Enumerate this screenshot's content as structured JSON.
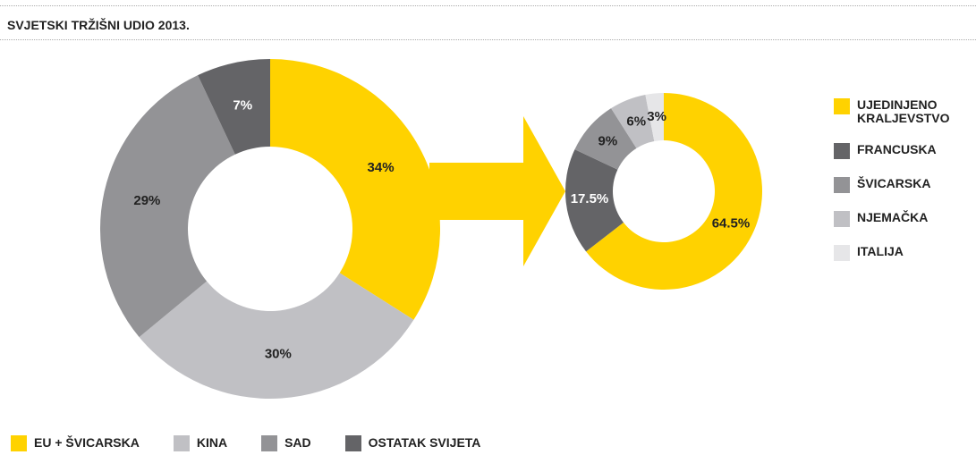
{
  "chart_data": [
    {
      "type": "pie",
      "donut": true,
      "title": "SVJETSKI TRŽIŠNI UDIO 2013.",
      "categories": [
        "EU + ŠVICARSKA",
        "KINA",
        "SAD",
        "OSTATAK SVIJETA"
      ],
      "values": [
        34,
        30,
        29,
        7
      ],
      "value_labels": [
        "34%",
        "30%",
        "29%",
        "7%"
      ],
      "colors": [
        "#ffd200",
        "#c0c0c4",
        "#939396",
        "#646467"
      ],
      "legend_position": "bottom"
    },
    {
      "type": "pie",
      "donut": true,
      "categories": [
        "UJEDINJENO KRALJEVSTVO",
        "FRANCUSKA",
        "ŠVICARSKA",
        "NJEMAČKA",
        "ITALIJA"
      ],
      "values": [
        64.5,
        17.5,
        9,
        6,
        3
      ],
      "value_labels": [
        "64.5%",
        "17.5%",
        "9%",
        "6%",
        "3%"
      ],
      "colors": [
        "#ffd200",
        "#646467",
        "#939396",
        "#c0c0c4",
        "#e6e6e8"
      ],
      "legend_position": "right"
    }
  ]
}
